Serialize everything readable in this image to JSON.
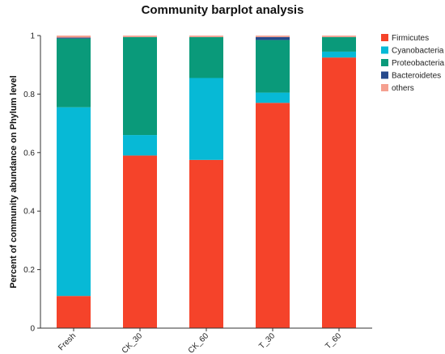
{
  "chart_data": {
    "type": "bar",
    "stacked": true,
    "title": "Community barplot analysis",
    "xlabel": "",
    "ylabel": "Percent of community abundance on Phylum level",
    "ylim": [
      0,
      1
    ],
    "yticks": [
      "0",
      "0.2",
      "0.4",
      "0.6",
      "0.8",
      "1"
    ],
    "categories": [
      "Fresh",
      "CK_30",
      "CK_60",
      "T_30",
      "T_60"
    ],
    "legend_position": "top-right",
    "series": [
      {
        "name": "Firmicutes",
        "color": "#f5432a",
        "values": [
          0.11,
          0.59,
          0.575,
          0.77,
          0.925
        ]
      },
      {
        "name": "Cyanobacteria",
        "color": "#07b9d6",
        "values": [
          0.645,
          0.07,
          0.28,
          0.035,
          0.02
        ]
      },
      {
        "name": "Proteobacteria",
        "color": "#0a9a7a",
        "values": [
          0.235,
          0.335,
          0.14,
          0.18,
          0.05
        ]
      },
      {
        "name": "Bacteroidetes",
        "color": "#264a8c",
        "values": [
          0.003,
          0.0,
          0.0,
          0.01,
          0.0
        ]
      },
      {
        "name": "others",
        "color": "#f5a090",
        "values": [
          0.007,
          0.005,
          0.005,
          0.005,
          0.005
        ]
      }
    ]
  }
}
